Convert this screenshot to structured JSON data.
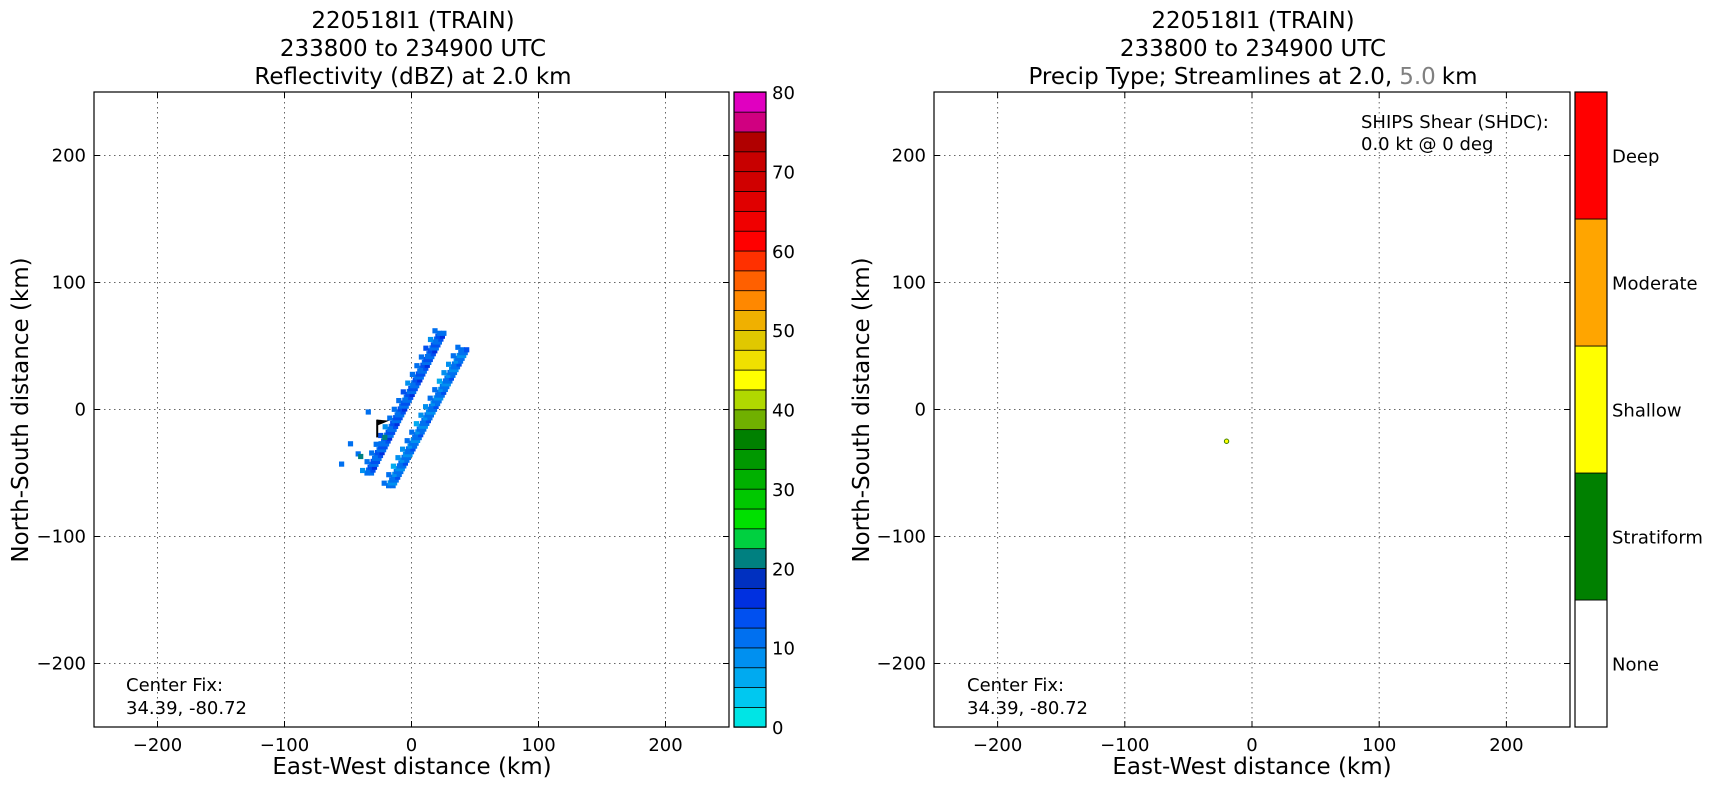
{
  "chart_data": [
    {
      "type": "heatmap",
      "title": [
        "220518I1 (TRAIN)",
        "233800 to 234900 UTC",
        "Reflectivity (dBZ) at 2.0 km"
      ],
      "xlabel": "East-West distance (km)",
      "ylabel": "North-South distance (km)",
      "xlim": [
        -250,
        250
      ],
      "ylim": [
        -250,
        250
      ],
      "xticks": [
        -200,
        -100,
        0,
        100,
        200
      ],
      "yticks": [
        -200,
        -100,
        0,
        100,
        200
      ],
      "xtick_labels": [
        "−200",
        "−100",
        "0",
        "100",
        "200"
      ],
      "ytick_labels": [
        "−200",
        "−100",
        "0",
        "100",
        "200"
      ],
      "grid": true,
      "annotation": [
        "Center Fix:",
        "34.39, -80.72"
      ],
      "colorbar": {
        "min": 0,
        "max": 80,
        "step": 2.5,
        "ticks": [
          0,
          10,
          20,
          30,
          40,
          50,
          60,
          70,
          80
        ],
        "colors": [
          "#00e5e5",
          "#00c8f0",
          "#00aaf0",
          "#0090f0",
          "#0070f0",
          "#0050f0",
          "#0030e0",
          "#0030c0",
          "#008080",
          "#00d040",
          "#00e000",
          "#00c800",
          "#00b000",
          "#009800",
          "#008000",
          "#70b000",
          "#b0d800",
          "#ffff00",
          "#f0e000",
          "#e0c800",
          "#f0b000",
          "#ff8800",
          "#ff6000",
          "#ff3000",
          "#ff0000",
          "#f00000",
          "#e00000",
          "#d00000",
          "#c80000",
          "#b00000",
          "#d00080",
          "#e000c0",
          "#f000f0",
          "#d040e0",
          "#a050c0",
          "#7040a0",
          "#402040",
          "#000000"
        ]
      },
      "features": [
        {
          "name": "western-band",
          "from": [
            -35,
            -50
          ],
          "to": [
            22,
            60
          ],
          "dbz": 12
        },
        {
          "name": "eastern-band",
          "from": [
            -18,
            -60
          ],
          "to": [
            40,
            47
          ],
          "dbz": 10
        },
        {
          "name": "scatter-pixels",
          "points": [
            [
              -55,
              -43
            ],
            [
              -48,
              -27
            ],
            [
              -42,
              -35
            ],
            [
              -34,
              -2
            ],
            [
              -24,
              -27
            ]
          ],
          "dbz": 11
        },
        {
          "name": "green-pixels",
          "points": [
            [
              -40,
              -37
            ],
            [
              -21,
              -22
            ]
          ],
          "dbz": 20
        }
      ],
      "wind_barb": {
        "x": -27,
        "y": -22,
        "flag_top": -8
      }
    },
    {
      "type": "heatmap",
      "title": [
        "220518I1 (TRAIN)",
        "233800 to 234900 UTC",
        "Precip Type; Streamlines at 2.0,",
        "5.0",
        "km"
      ],
      "xlabel": "East-West distance (km)",
      "ylabel": "North-South distance (km)",
      "xlim": [
        -250,
        250
      ],
      "ylim": [
        -250,
        250
      ],
      "xticks": [
        -200,
        -100,
        0,
        100,
        200
      ],
      "yticks": [
        -200,
        -100,
        0,
        100,
        200
      ],
      "xtick_labels": [
        "−200",
        "−100",
        "0",
        "100",
        "200"
      ],
      "ytick_labels": [
        "−200",
        "−100",
        "0",
        "100",
        "200"
      ],
      "grid": true,
      "annotation": [
        "Center Fix:",
        "34.39, -80.72"
      ],
      "shear_note": [
        "SHIPS Shear (SHDC):",
        "0.0 kt @ 0 deg"
      ],
      "categories": [
        "None",
        "Stratiform",
        "Shallow",
        "Moderate",
        "Deep"
      ],
      "category_colors": [
        "#ffffff",
        "#008000",
        "#ffff00",
        "#ffa500",
        "#ff0000"
      ],
      "points": [
        {
          "x": -20,
          "y": -25,
          "category": "Shallow"
        }
      ]
    }
  ]
}
